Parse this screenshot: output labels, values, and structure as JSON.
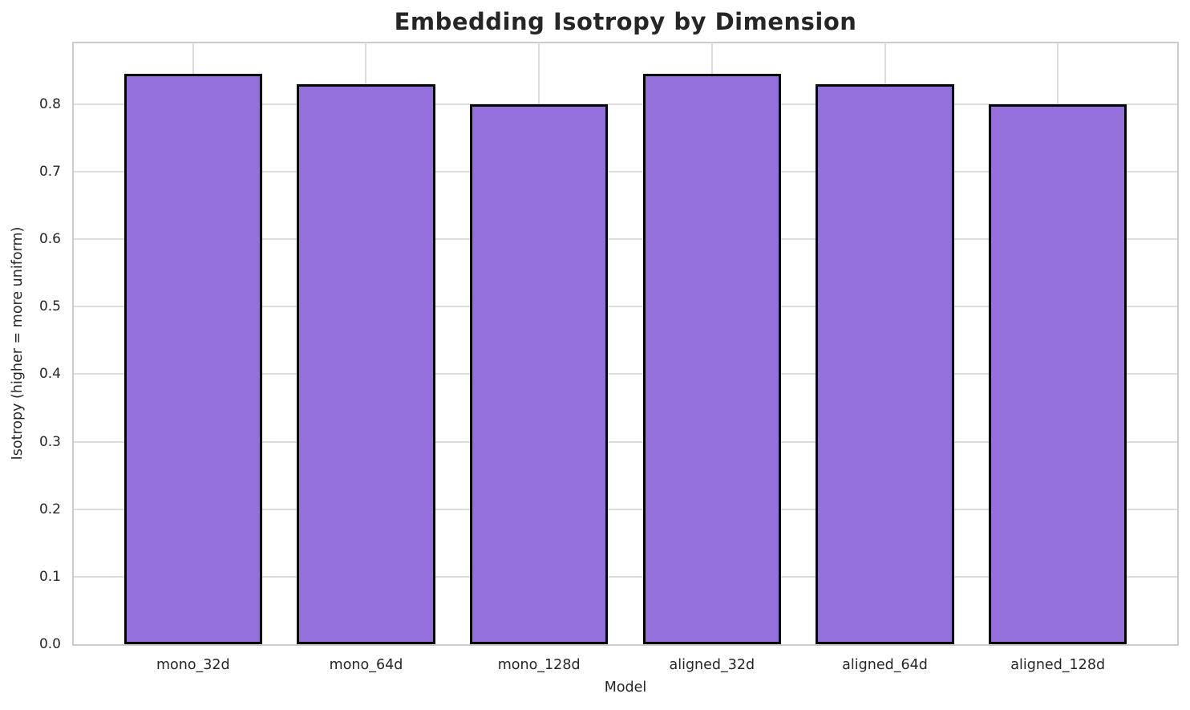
{
  "figure": {
    "background": "#ffffff"
  },
  "chart_data": {
    "type": "bar",
    "title": "Embedding Isotropy by Dimension",
    "xlabel": "Model",
    "ylabel": "Isotropy (higher = more uniform)",
    "categories": [
      "mono_32d",
      "mono_64d",
      "mono_128d",
      "aligned_32d",
      "aligned_64d",
      "aligned_128d"
    ],
    "values": [
      0.845,
      0.83,
      0.8,
      0.845,
      0.83,
      0.8
    ],
    "ylim": [
      0,
      0.89
    ],
    "yticks": [
      0.0,
      0.1,
      0.2,
      0.3,
      0.4,
      0.5,
      0.6,
      0.7,
      0.8
    ],
    "ytick_labels": [
      "0.0",
      "0.1",
      "0.2",
      "0.3",
      "0.4",
      "0.5",
      "0.6",
      "0.7",
      "0.8"
    ],
    "grid": true,
    "legend": false,
    "bar_color": "#9370DB",
    "bar_edge_color": "#000000",
    "grid_color": "#dcdcdc",
    "spine_color": "#cccccc",
    "text_color": "#262626"
  }
}
